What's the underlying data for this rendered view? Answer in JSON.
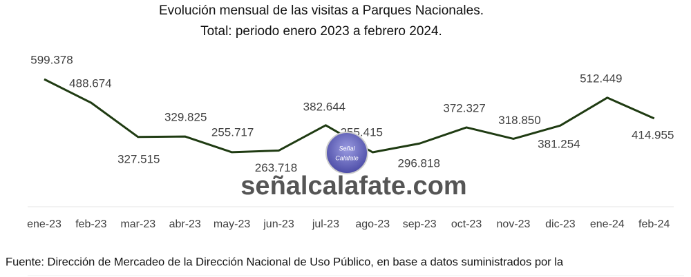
{
  "chart_data": {
    "type": "line",
    "title": "Evolución mensual de las visitas a Parques Nacionales.",
    "subtitle": "Total: periodo enero 2023 a febrero 2024.",
    "categories": [
      "ene-23",
      "feb-23",
      "mar-23",
      "abr-23",
      "may-23",
      "jun-23",
      "jul-23",
      "ago-23",
      "sep-23",
      "oct-23",
      "nov-23",
      "dic-23",
      "ene-24",
      "feb-24"
    ],
    "series": [
      {
        "color": "#1f3b12",
        "values": [
          599378,
          488674,
          327515,
          329825,
          255717,
          263718,
          382644,
          255415,
          296818,
          372327,
          318850,
          381254,
          512449,
          414955
        ],
        "value_labels": [
          "599.378",
          "488.674",
          "327.515",
          "329.825",
          "255.717",
          "263.718",
          "382.644",
          "255.415",
          "296.818",
          "372.327",
          "318.850",
          "381.254",
          "512.449",
          "414.955"
        ]
      }
    ],
    "source": "Fuente: Dirección de Mercadeo de la Dirección Nacional de Uso Público, en base a datos suministrados por la",
    "watermark": "señalcalafate.com",
    "logo_text": [
      "Señal",
      "Calafate"
    ]
  }
}
